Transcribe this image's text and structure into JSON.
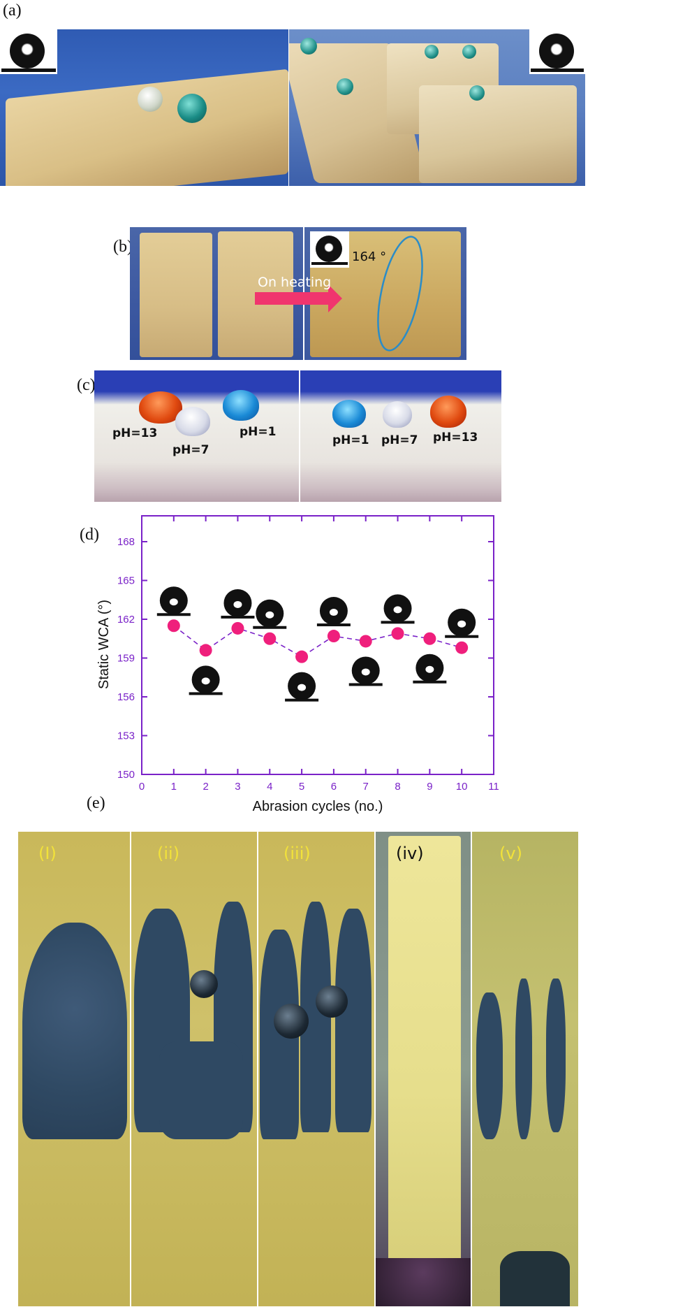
{
  "panels": {
    "a": {
      "label": "(a)"
    },
    "b": {
      "label": "(b)",
      "heating_text": "On heating",
      "angle_text": "164 °"
    },
    "c": {
      "label": "(c)",
      "left": [
        "pH=13",
        "pH=7",
        "pH=1"
      ],
      "right": [
        "pH=1",
        "pH=7",
        "pH=13"
      ]
    },
    "d": {
      "label": "(d)"
    },
    "e": {
      "label": "(e)",
      "strips": [
        "(I)",
        "(ii)",
        "(iii)",
        "(iv)",
        "(v)"
      ]
    }
  },
  "colors": {
    "axis": "#7a22c8",
    "marker": "#ef1f7c",
    "arrow": "#f0356e",
    "ellipse": "#2a8cc8"
  },
  "chart_data": {
    "type": "scatter",
    "title": "",
    "xlabel": "Abrasion cycles (no.)",
    "ylabel": "Static WCA (°)",
    "xlim": [
      0,
      11
    ],
    "ylim": [
      150,
      170
    ],
    "xticks": [
      0,
      1,
      2,
      3,
      4,
      5,
      6,
      7,
      8,
      9,
      10,
      11
    ],
    "yticks": [
      150,
      153,
      156,
      159,
      162,
      165,
      168
    ],
    "x": [
      1,
      2,
      3,
      4,
      5,
      6,
      7,
      8,
      9,
      10
    ],
    "y": [
      161.5,
      159.6,
      161.3,
      160.5,
      159.1,
      160.7,
      160.3,
      160.9,
      160.5,
      159.8
    ],
    "droplet_positions": [
      "above",
      "below",
      "above",
      "above",
      "below",
      "above",
      "below",
      "above",
      "below",
      "above"
    ],
    "grid": false,
    "legend": "none"
  }
}
